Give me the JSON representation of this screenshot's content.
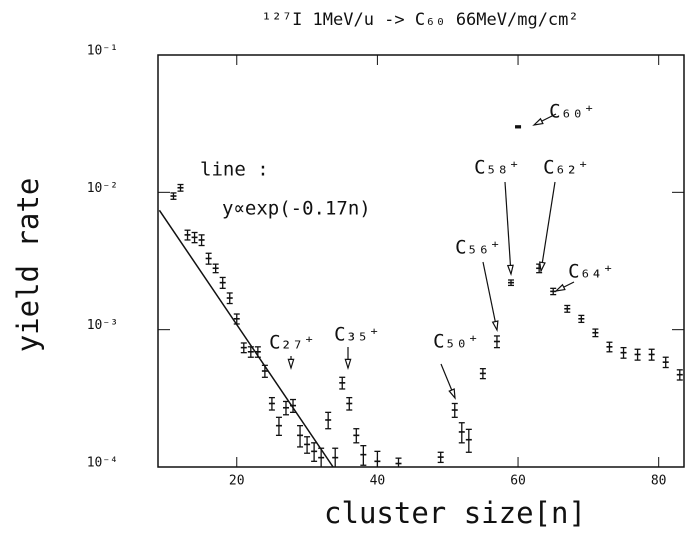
{
  "chart_data": {
    "type": "scatter",
    "title": "¹²⁷I 1MeV/u -> C₆₀ 66MeV/mg/cm²",
    "xlabel": "cluster size[n]",
    "ylabel": "yield rate",
    "xlim": [
      8.8,
      83.6
    ],
    "ylim": [
      0.0001,
      0.1
    ],
    "yscale": "log",
    "xticks": [
      20,
      40,
      60,
      80
    ],
    "yticks": [
      {
        "value": 0.1,
        "label": "10⁻¹"
      },
      {
        "value": 0.01,
        "label": "10⁻²"
      },
      {
        "value": 0.001,
        "label": "10⁻³"
      },
      {
        "value": 0.0001,
        "label": "10⁻⁴"
      }
    ],
    "color": "#111111",
    "points": {
      "x": [
        11,
        12,
        13,
        14,
        15,
        16,
        17,
        18,
        19,
        20,
        21,
        22,
        23,
        24,
        25,
        26,
        27,
        28,
        29,
        30,
        31,
        32,
        33,
        34,
        35,
        36,
        37,
        38,
        40,
        43,
        49,
        51,
        52,
        53,
        55,
        57,
        59,
        60,
        63,
        65,
        67,
        69,
        71,
        73,
        75,
        77,
        79,
        81,
        83
      ],
      "values": [
        0.0094,
        0.0108,
        0.0049,
        0.0047,
        0.0045,
        0.0033,
        0.0028,
        0.0022,
        0.0017,
        0.0012,
        0.00074,
        0.00069,
        0.00069,
        0.0005,
        0.00029,
        0.0002,
        0.00027,
        0.00028,
        0.00017,
        0.000146,
        0.00013,
        0.000117,
        0.00022,
        0.000117,
        0.00041,
        0.00029,
        0.00017,
        0.000123,
        0.00011,
        0.000106,
        0.000118,
        0.00026,
        0.00018,
        0.000158,
        0.00048,
        0.00082,
        0.0022,
        0.03,
        0.0028,
        0.0019,
        0.00142,
        0.0012,
        0.00095,
        0.00075,
        0.00068,
        0.00066,
        0.00066,
        0.00058,
        0.00047
      ],
      "errors": [
        0.0005,
        0.0006,
        0.0004,
        0.0004,
        0.0004,
        0.0003,
        0.0002,
        0.0002,
        0.00015,
        0.0001,
        6e-05,
        6e-05,
        6e-05,
        5e-05,
        3e-05,
        3e-05,
        3e-05,
        3e-05,
        3e-05,
        2e-05,
        2e-05,
        2e-05,
        3e-05,
        2e-05,
        4e-05,
        3e-05,
        2e-05,
        2e-05,
        2e-05,
        1e-05,
        1e-05,
        3e-05,
        3e-05,
        3e-05,
        4e-05,
        8e-05,
        0.0001,
        0.0005,
        0.0002,
        0.0001,
        8e-05,
        7e-05,
        6e-05,
        6e-05,
        6e-05,
        6e-05,
        6e-05,
        5e-05,
        4e-05
      ]
    },
    "fit": {
      "x": [
        9,
        33.7
      ],
      "values": [
        0.0074,
        0.0001
      ]
    },
    "annotations": [
      "line :",
      "y∝exp(-0.17n)",
      "C₂₇⁺",
      "C₃₅⁺",
      "C₅₀⁺",
      "C₅₆⁺",
      "C₅₈⁺",
      "C₆₂⁺",
      "C₆₄⁺",
      "C₆₀⁺"
    ]
  }
}
